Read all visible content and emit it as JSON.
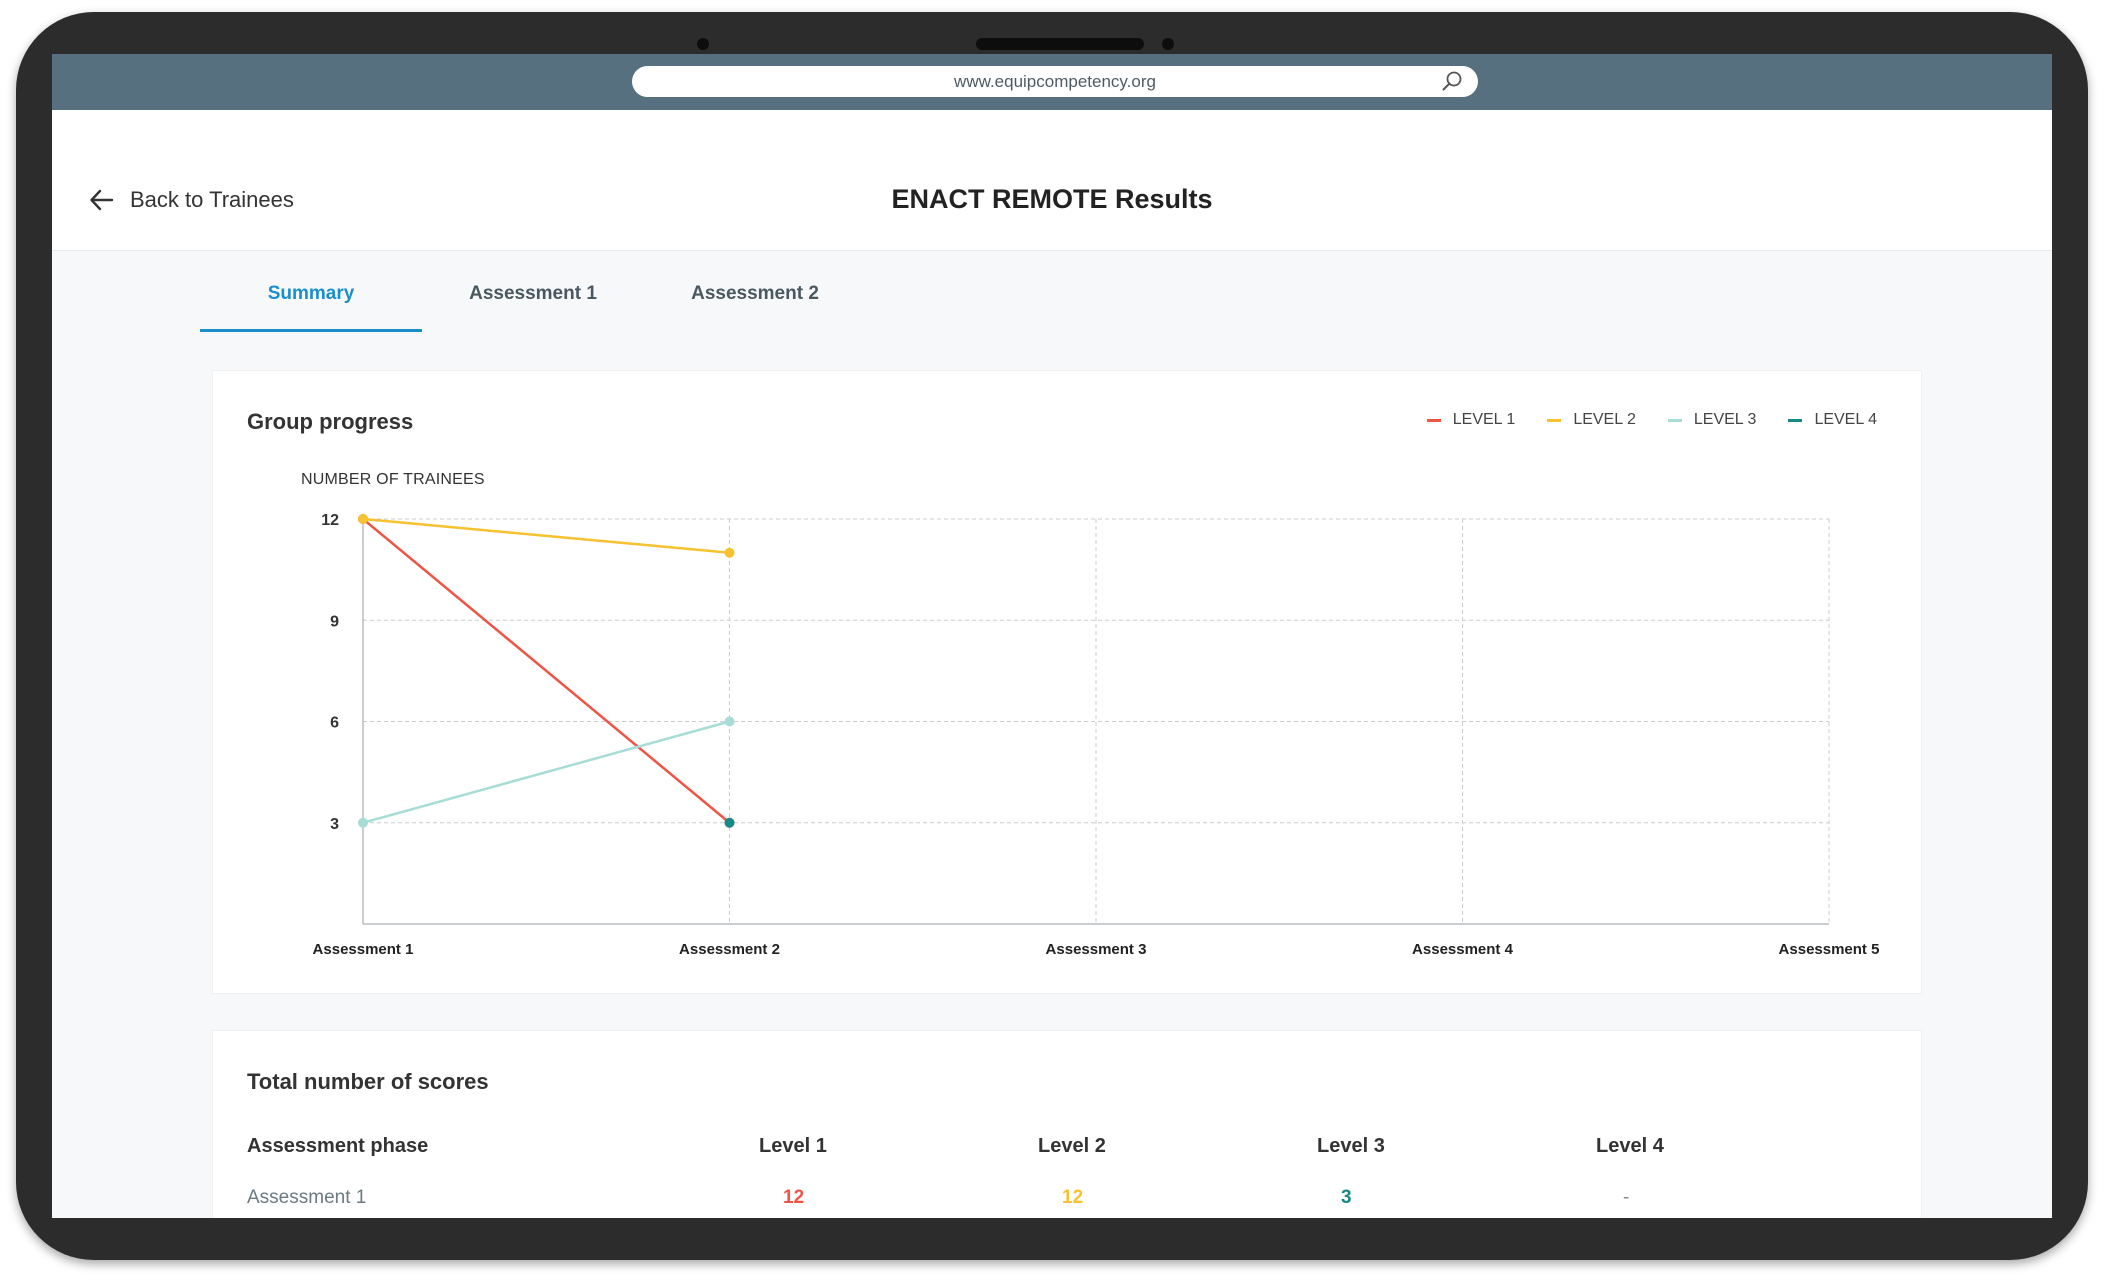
{
  "browser": {
    "url": "www.equipcompetency.org"
  },
  "header": {
    "back_label": "Back to Trainees",
    "title": "ENACT REMOTE Results"
  },
  "tabs": [
    {
      "label": "Summary",
      "active": true
    },
    {
      "label": "Assessment 1",
      "active": false
    },
    {
      "label": "Assessment 2",
      "active": false
    }
  ],
  "colors": {
    "level1": "#ef5445",
    "level2": "#f7c22f",
    "level3": "#a8ddd7",
    "level4": "#168a86",
    "accent": "#1b8fc9",
    "topbar": "#56707f"
  },
  "group_progress": {
    "title": "Group progress",
    "legend": [
      "LEVEL 1",
      "LEVEL 2",
      "LEVEL 3",
      "LEVEL 4"
    ]
  },
  "chart_data": {
    "type": "line",
    "title": "Group progress",
    "ylabel": "NUMBER OF TRAINEES",
    "xlabel": "",
    "categories": [
      "Assessment 1",
      "Assessment 2",
      "Assessment 3",
      "Assessment 4",
      "Assessment 5"
    ],
    "yticks": [
      3,
      6,
      9,
      12
    ],
    "ylim": [
      0,
      12
    ],
    "grid": true,
    "legend_position": "top-right",
    "series": [
      {
        "name": "LEVEL 1",
        "color": "#ef5445",
        "values": [
          12,
          3,
          null,
          null,
          null
        ]
      },
      {
        "name": "LEVEL 2",
        "color": "#f7c22f",
        "values": [
          12,
          11,
          null,
          null,
          null
        ]
      },
      {
        "name": "LEVEL 3",
        "color": "#a8ddd7",
        "values": [
          3,
          6,
          null,
          null,
          null
        ]
      },
      {
        "name": "LEVEL 4",
        "color": "#168a86",
        "values": [
          null,
          3,
          null,
          null,
          null
        ]
      }
    ]
  },
  "scores": {
    "title": "Total number of scores",
    "columns": [
      "Assessment phase",
      "Level 1",
      "Level 2",
      "Level 3",
      "Level 4"
    ],
    "rows": [
      {
        "phase": "Assessment 1",
        "level1": "12",
        "level2": "12",
        "level3": "3",
        "level4": "-"
      }
    ]
  }
}
